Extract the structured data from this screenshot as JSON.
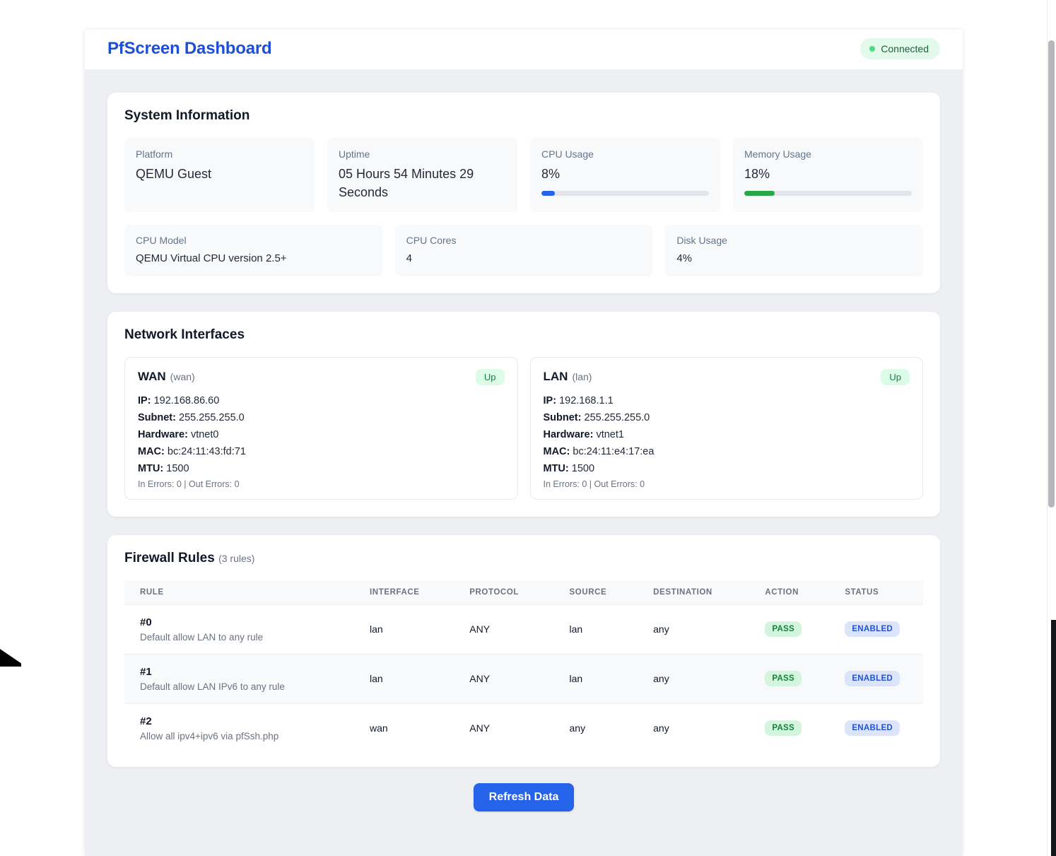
{
  "header": {
    "title": "PfScreen Dashboard",
    "connection_status": "Connected"
  },
  "system_info": {
    "title": "System Information",
    "stats_row1": [
      {
        "label": "Platform",
        "value": "QEMU Guest"
      },
      {
        "label": "Uptime",
        "value": "05 Hours 54 Minutes 29 Seconds"
      },
      {
        "label": "CPU Usage",
        "value": "8%",
        "percent": 8
      },
      {
        "label": "Memory Usage",
        "value": "18%",
        "percent": 18
      }
    ],
    "stats_row2": [
      {
        "label": "CPU Model",
        "value": "QEMU Virtual CPU version 2.5+"
      },
      {
        "label": "CPU Cores",
        "value": "4"
      },
      {
        "label": "Disk Usage",
        "value": "4%"
      }
    ]
  },
  "network_interfaces": {
    "title": "Network Interfaces",
    "interfaces": [
      {
        "name": "WAN",
        "code": "(wan)",
        "status": "Up",
        "details": [
          {
            "label": "IP:",
            "value": "192.168.86.60"
          },
          {
            "label": "Subnet:",
            "value": "255.255.255.0"
          },
          {
            "label": "Hardware:",
            "value": "vtnet0"
          },
          {
            "label": "MAC:",
            "value": "bc:24:11:43:fd:71"
          },
          {
            "label": "MTU:",
            "value": "1500"
          }
        ],
        "errors": "In Errors: 0 | Out Errors: 0"
      },
      {
        "name": "LAN",
        "code": "(lan)",
        "status": "Up",
        "details": [
          {
            "label": "IP:",
            "value": "192.168.1.1"
          },
          {
            "label": "Subnet:",
            "value": "255.255.255.0"
          },
          {
            "label": "Hardware:",
            "value": "vtnet1"
          },
          {
            "label": "MAC:",
            "value": "bc:24:11:e4:17:ea"
          },
          {
            "label": "MTU:",
            "value": "1500"
          }
        ],
        "errors": "In Errors: 0 | Out Errors: 0"
      }
    ]
  },
  "firewall": {
    "title": "Firewall Rules",
    "count_label": "(3 rules)",
    "columns": [
      "RULE",
      "INTERFACE",
      "PROTOCOL",
      "SOURCE",
      "DESTINATION",
      "ACTION",
      "STATUS"
    ],
    "rules": [
      {
        "number": "#0",
        "description": "Default allow LAN to any rule",
        "interface": "lan",
        "protocol": "ANY",
        "source": "lan",
        "destination": "any",
        "action": "PASS",
        "status": "ENABLED"
      },
      {
        "number": "#1",
        "description": "Default allow LAN IPv6 to any rule",
        "interface": "lan",
        "protocol": "ANY",
        "source": "lan",
        "destination": "any",
        "action": "PASS",
        "status": "ENABLED"
      },
      {
        "number": "#2",
        "description": "Allow all ipv4+ipv6 via pfSsh.php",
        "interface": "wan",
        "protocol": "ANY",
        "source": "any",
        "destination": "any",
        "action": "PASS",
        "status": "ENABLED"
      }
    ]
  },
  "footer": {
    "refresh_label": "Refresh Data"
  },
  "colors": {
    "accent_blue": "#1d4ed8",
    "button_blue": "#2563eb",
    "cpu_bar": "#2563eb",
    "memory_bar": "#28a745",
    "up_badge_bg": "#dcfce7",
    "up_badge_text": "#15803d",
    "pass_badge_bg": "#d3f5de",
    "pass_badge_text": "#15803d",
    "enabled_badge_bg": "#dbe4fb",
    "enabled_badge_text": "#2250d4",
    "status_dot_green": "#4ade80"
  }
}
